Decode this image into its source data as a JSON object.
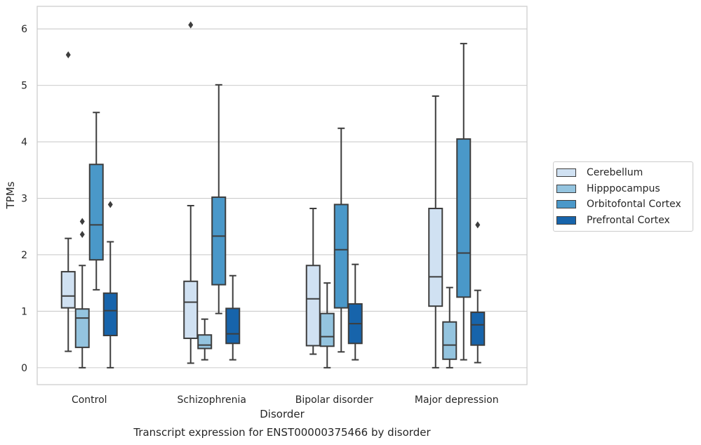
{
  "chart_data": {
    "type": "boxplot",
    "xlabel": "Disorder",
    "ylabel": "TPMs",
    "caption": "Transcript expression for ENST00000375466 by disorder",
    "ylim": [
      -0.3,
      6.4
    ],
    "yticks": [
      "0",
      "1",
      "2",
      "3",
      "4",
      "5",
      "6"
    ],
    "categories": [
      "Control",
      "Schizophrenia",
      "Bipolar disorder",
      "Major depression"
    ],
    "grid": true,
    "legend_position": "right",
    "series": [
      {
        "name": "Cerebellum",
        "color": "#d0e1f2",
        "boxes": [
          {
            "whislo": 0.29,
            "q1": 1.06,
            "med": 1.27,
            "q3": 1.7,
            "whishi": 2.29,
            "fliers": [
              5.54
            ]
          },
          {
            "whislo": 0.08,
            "q1": 0.52,
            "med": 1.16,
            "q3": 1.53,
            "whishi": 2.87,
            "fliers": [
              6.07
            ]
          },
          {
            "whislo": 0.24,
            "q1": 0.39,
            "med": 1.22,
            "q3": 1.81,
            "whishi": 2.82,
            "fliers": []
          },
          {
            "whislo": 0.0,
            "q1": 1.09,
            "med": 1.61,
            "q3": 2.82,
            "whishi": 4.81,
            "fliers": []
          }
        ]
      },
      {
        "name": "Hipppocampus",
        "color": "#94c4df",
        "boxes": [
          {
            "whislo": 0.0,
            "q1": 0.36,
            "med": 0.88,
            "q3": 1.04,
            "whishi": 1.81,
            "fliers": [
              2.59,
              2.36
            ]
          },
          {
            "whislo": 0.14,
            "q1": 0.34,
            "med": 0.4,
            "q3": 0.58,
            "whishi": 0.86,
            "fliers": []
          },
          {
            "whislo": 0.0,
            "q1": 0.38,
            "med": 0.55,
            "q3": 0.96,
            "whishi": 1.5,
            "fliers": []
          },
          {
            "whislo": 0.0,
            "q1": 0.15,
            "med": 0.4,
            "q3": 0.81,
            "whishi": 1.42,
            "fliers": []
          }
        ]
      },
      {
        "name": "Orbitofontal Cortex",
        "color": "#4a98c9",
        "boxes": [
          {
            "whislo": 1.38,
            "q1": 1.91,
            "med": 2.53,
            "q3": 3.6,
            "whishi": 4.52,
            "fliers": []
          },
          {
            "whislo": 0.96,
            "q1": 1.47,
            "med": 2.33,
            "q3": 3.02,
            "whishi": 5.01,
            "fliers": []
          },
          {
            "whislo": 0.28,
            "q1": 1.06,
            "med": 2.09,
            "q3": 2.89,
            "whishi": 4.24,
            "fliers": []
          },
          {
            "whislo": 0.14,
            "q1": 1.25,
            "med": 2.03,
            "q3": 4.05,
            "whishi": 5.74,
            "fliers": []
          }
        ]
      },
      {
        "name": "Prefrontal Cortex",
        "color": "#1764ab",
        "boxes": [
          {
            "whislo": 0.0,
            "q1": 0.57,
            "med": 1.01,
            "q3": 1.32,
            "whishi": 2.23,
            "fliers": [
              2.89
            ]
          },
          {
            "whislo": 0.14,
            "q1": 0.43,
            "med": 0.6,
            "q3": 1.05,
            "whishi": 1.63,
            "fliers": []
          },
          {
            "whislo": 0.14,
            "q1": 0.43,
            "med": 0.78,
            "q3": 1.13,
            "whishi": 1.83,
            "fliers": []
          },
          {
            "whislo": 0.09,
            "q1": 0.4,
            "med": 0.76,
            "q3": 0.98,
            "whishi": 1.37,
            "fliers": [
              2.53
            ]
          }
        ]
      }
    ]
  }
}
